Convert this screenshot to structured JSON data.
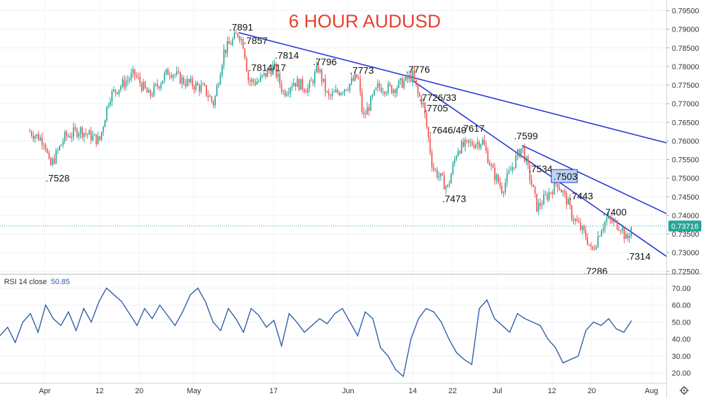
{
  "chart_data": [
    {
      "type": "candlestick",
      "title": "6 HOUR AUDUSD",
      "x_ticks": [
        "Apr",
        "12",
        "20",
        "May",
        "17",
        "Jun",
        "14",
        "22",
        "Jul",
        "12",
        "20",
        "Aug"
      ],
      "y_ticks": [
        "0.79500",
        "0.79000",
        "0.78500",
        "0.78000",
        "0.77500",
        "0.77000",
        "0.76500",
        "0.76000",
        "0.75500",
        "0.75000",
        "0.74500",
        "0.74000",
        "0.73500",
        "0.73000",
        "0.72500"
      ],
      "ylim": [
        0.7245,
        0.7975
      ],
      "last_price": "0.73716",
      "last_value": 0.73716,
      "colors": {
        "up": "#26a69a",
        "down": "#ef5350",
        "trendline": "#2433d6",
        "title": "#e8402f"
      },
      "price_path": [
        [
          "2021-03-29",
          0.7625
        ],
        [
          "2021-04-01",
          0.76
        ],
        [
          "2021-04-02",
          0.7528
        ],
        [
          "2021-04-05",
          0.761
        ],
        [
          "2021-04-08",
          0.763
        ],
        [
          "2021-04-12",
          0.76
        ],
        [
          "2021-04-14",
          0.772
        ],
        [
          "2021-04-16",
          0.7745
        ],
        [
          "2021-04-19",
          0.778
        ],
        [
          "2021-04-22",
          0.772
        ],
        [
          "2021-04-26",
          0.779
        ],
        [
          "2021-04-29",
          0.776
        ],
        [
          "2021-05-03",
          0.774
        ],
        [
          "2021-05-05",
          0.77
        ],
        [
          "2021-05-07",
          0.784
        ],
        [
          "2021-05-10",
          0.7891
        ],
        [
          "2021-05-11",
          0.7857
        ],
        [
          "2021-05-12",
          0.776
        ],
        [
          "2021-05-14",
          0.776
        ],
        [
          "2021-05-17",
          0.78
        ],
        [
          "2021-05-19",
          0.773
        ],
        [
          "2021-05-21",
          0.776
        ],
        [
          "2021-05-24",
          0.774
        ],
        [
          "2021-05-26",
          0.7796
        ],
        [
          "2021-05-28",
          0.7715
        ],
        [
          "2021-06-01",
          0.775
        ],
        [
          "2021-06-03",
          0.7773
        ],
        [
          "2021-06-04",
          0.766
        ],
        [
          "2021-06-07",
          0.7745
        ],
        [
          "2021-06-10",
          0.774
        ],
        [
          "2021-06-14",
          0.7776
        ],
        [
          "2021-06-15",
          0.7726
        ],
        [
          "2021-06-16",
          0.7705
        ],
        [
          "2021-06-17",
          0.762
        ],
        [
          "2021-06-18",
          0.753
        ],
        [
          "2021-06-21",
          0.7473
        ],
        [
          "2021-06-23",
          0.758
        ],
        [
          "2021-06-25",
          0.759
        ],
        [
          "2021-06-28",
          0.76
        ],
        [
          "2021-06-30",
          0.752
        ],
        [
          "2021-07-02",
          0.747
        ],
        [
          "2021-07-05",
          0.756
        ],
        [
          "2021-07-06",
          0.7585
        ],
        [
          "2021-07-08",
          0.748
        ],
        [
          "2021-07-09",
          0.742
        ],
        [
          "2021-07-12",
          0.747
        ],
        [
          "2021-07-13",
          0.749
        ],
        [
          "2021-07-15",
          0.744
        ],
        [
          "2021-07-16",
          0.74
        ],
        [
          "2021-07-19",
          0.734
        ],
        [
          "2021-07-20",
          0.73
        ],
        [
          "2021-07-22",
          0.737
        ],
        [
          "2021-07-23",
          0.739
        ],
        [
          "2021-07-26",
          0.737
        ],
        [
          "2021-07-27",
          0.733
        ],
        [
          "2021-07-28",
          0.7372
        ]
      ],
      "annotations": [
        {
          "text": ".7891",
          "date": "2021-05-10",
          "price": 0.7891
        },
        {
          "text": ".7857",
          "date": "2021-05-11",
          "price": 0.7857
        },
        {
          "text": ".7814/17",
          "date": "2021-05-12",
          "price": 0.7814
        },
        {
          "text": ".7814",
          "date": "2021-05-17",
          "price": 0.7814
        },
        {
          "text": ".7796",
          "date": "2021-05-26",
          "price": 0.7796
        },
        {
          "text": ".7773",
          "date": "2021-06-03",
          "price": 0.7773
        },
        {
          "text": ".7776",
          "date": "2021-06-14",
          "price": 0.7776
        },
        {
          "text": ".7726/33",
          "date": "2021-06-15",
          "price": 0.7726
        },
        {
          "text": ".7705",
          "date": "2021-06-16",
          "price": 0.7705
        },
        {
          "text": ".7646/49",
          "date": "2021-06-17",
          "price": 0.7646
        },
        {
          "text": ".7617",
          "date": "2021-06-25",
          "price": 0.7617
        },
        {
          "text": ".7599",
          "date": "2021-07-06",
          "price": 0.7599
        },
        {
          "text": ".7534",
          "date": "2021-07-07",
          "price": 0.7534
        },
        {
          "text": ".7503",
          "date": "2021-07-12",
          "price": 0.7503,
          "highlight": true
        },
        {
          "text": ".7443",
          "date": "2021-07-16",
          "price": 0.7443
        },
        {
          "text": ".7400",
          "date": "2021-07-23",
          "price": 0.74
        },
        {
          "text": ".7528",
          "date": "2021-04-02",
          "price": 0.7528
        },
        {
          "text": ".7473",
          "date": "2021-06-21",
          "price": 0.7473
        },
        {
          "text": ".7286",
          "date": "2021-07-20",
          "price": 0.7286
        },
        {
          "text": ".7314",
          "date": "2021-07-27",
          "price": 0.7314
        }
      ],
      "trendlines": [
        {
          "from": [
            "2021-05-10",
            0.7891
          ],
          "to": [
            "2021-08-04",
            0.7595
          ]
        },
        {
          "from": [
            "2021-06-14",
            0.7762
          ],
          "to": [
            "2021-08-04",
            0.729
          ]
        },
        {
          "from": [
            "2021-07-06",
            0.7588
          ],
          "to": [
            "2021-08-04",
            0.7405
          ]
        }
      ]
    },
    {
      "type": "line",
      "title": "RSI 14 close",
      "value_label": "50.85",
      "y_ticks": [
        "70.00",
        "60.00",
        "50.00",
        "40.00",
        "30.00",
        "20.00"
      ],
      "ylim": [
        15,
        76
      ],
      "line_color": "#2f5da8",
      "values": [
        42,
        47,
        38,
        50,
        55,
        44,
        60,
        52,
        48,
        56,
        45,
        58,
        50,
        62,
        70,
        66,
        62,
        55,
        48,
        58,
        52,
        60,
        54,
        48,
        56,
        66,
        70,
        62,
        50,
        45,
        58,
        52,
        44,
        58,
        54,
        47,
        51,
        36,
        55,
        50,
        44,
        48,
        52,
        49,
        55,
        58,
        50,
        42,
        56,
        52,
        35,
        30,
        22,
        18,
        40,
        52,
        58,
        56,
        50,
        40,
        32,
        28,
        25,
        58,
        63,
        52,
        48,
        44,
        55,
        52,
        50,
        48,
        40,
        35,
        26,
        28,
        30,
        45,
        50,
        48,
        52,
        46,
        44,
        50.85
      ]
    }
  ]
}
